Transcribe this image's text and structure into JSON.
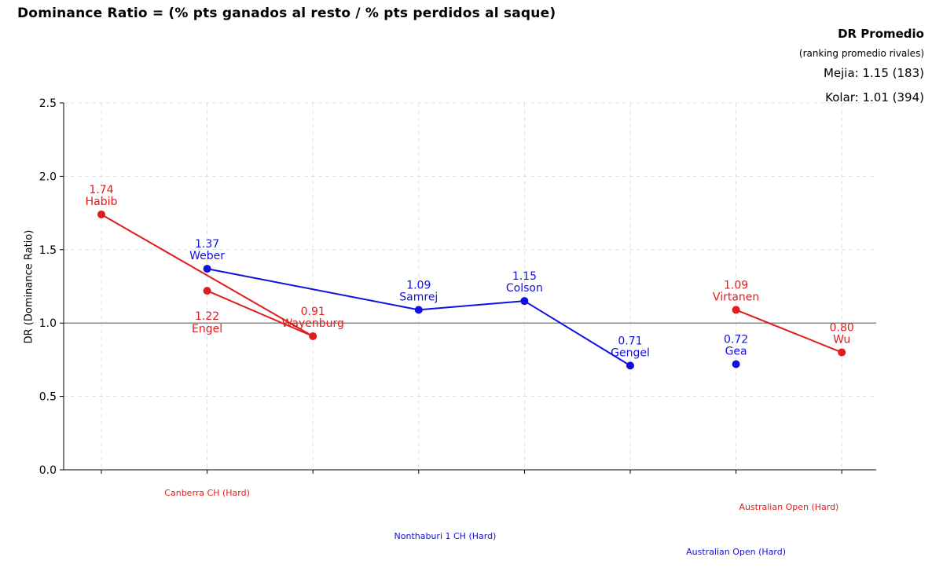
{
  "chart_data": {
    "type": "line",
    "title": "Dominance Ratio = (% pts ganados al resto / % pts perdidos al saque)",
    "xlabel": "",
    "ylabel": "DR (Dominance Ratio)",
    "ylim": [
      0,
      2.5
    ],
    "yticks": [
      "0.0",
      "0.5",
      "1.0",
      "1.5",
      "2.0",
      "2.5"
    ],
    "reference_line": 1.0,
    "grid": true,
    "x_count": 8,
    "legend": {
      "title": "DR Promedio",
      "subtitle": "(ranking promedio rivales)",
      "placement": "top-right",
      "entries": [
        {
          "label": "Mejia: 1.15 (183)",
          "color": "#e01c1c"
        },
        {
          "label": "Kolar: 1.01 (394)",
          "color": "#1010e0"
        }
      ]
    },
    "tournaments": [
      {
        "label": "Canberra CH (Hard)",
        "color": "#e01c1c",
        "x": 1,
        "level": "upper"
      },
      {
        "label": "Nonthaburi 1 CH (Hard)",
        "color": "#1010e0",
        "x": 3.25,
        "level": "lower"
      },
      {
        "label": "Australian Open (Hard)",
        "color": "#e01c1c",
        "x": 6.5,
        "level": "upper-mid"
      },
      {
        "label": "Australian Open (Hard)",
        "color": "#1010e0",
        "x": 6,
        "level": "lowest"
      }
    ],
    "series": [
      {
        "name": "Mejia",
        "color": "#e01c1c",
        "points": [
          {
            "x": 0,
            "y": 1.74,
            "value_label": "1.74",
            "name": "Habib",
            "label_pos": "above"
          },
          {
            "x": 1,
            "y": 1.22,
            "value_label": "1.22",
            "name": "Engel",
            "label_pos": "below"
          },
          {
            "x": 2,
            "y": 0.91,
            "value_label": "0.91",
            "name": "Wayenburg",
            "label_pos": "above"
          },
          {
            "x": 6,
            "y": 1.09,
            "value_label": "1.09",
            "name": "Virtanen",
            "label_pos": "above"
          },
          {
            "x": 7,
            "y": 0.8,
            "value_label": "0.80",
            "name": "Wu",
            "label_pos": "above"
          }
        ],
        "segments": [
          [
            0,
            2
          ],
          [
            1,
            2
          ],
          [
            6,
            7
          ]
        ]
      },
      {
        "name": "Kolar",
        "color": "#1010e0",
        "points": [
          {
            "x": 1,
            "y": 1.37,
            "value_label": "1.37",
            "name": "Weber",
            "label_pos": "above"
          },
          {
            "x": 3,
            "y": 1.09,
            "value_label": "1.09",
            "name": "Samrej",
            "label_pos": "above"
          },
          {
            "x": 4,
            "y": 1.15,
            "value_label": "1.15",
            "name": "Colson",
            "label_pos": "above"
          },
          {
            "x": 5,
            "y": 0.71,
            "value_label": "0.71",
            "name": "Gengel",
            "label_pos": "above"
          },
          {
            "x": 6,
            "y": 0.72,
            "value_label": "0.72",
            "name": "Gea",
            "label_pos": "above"
          }
        ],
        "segments": [
          [
            1,
            3
          ],
          [
            3,
            4
          ],
          [
            4,
            5
          ]
        ]
      }
    ]
  }
}
